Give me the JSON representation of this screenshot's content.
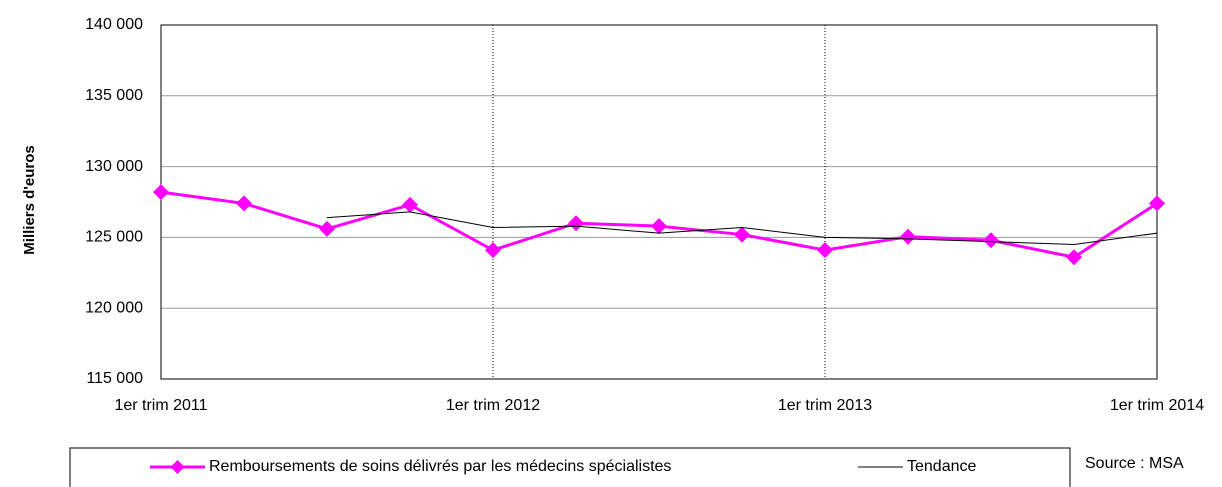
{
  "chart_data": {
    "type": "line",
    "ylabel": "Milliers d'euros",
    "source": "Source : MSA",
    "categories": [
      "1er trim 2011",
      null,
      null,
      null,
      "1er trim 2012",
      null,
      null,
      null,
      "1er trim 2013",
      null,
      null,
      null,
      "1er trim 2014"
    ],
    "series": [
      {
        "name": "Remboursements de soins délivrés par les médecins spécialistes",
        "color": "#ff00ff",
        "values": [
          128200,
          127400,
          125600,
          127300,
          124100,
          126000,
          125800,
          125200,
          124100,
          125050,
          124800,
          123600,
          127400
        ]
      },
      {
        "name": "Tendance",
        "color": "#000000",
        "values": [
          null,
          null,
          126400,
          126800,
          125700,
          125800,
          125300,
          125700,
          125000,
          124900,
          124700,
          124500,
          125300
        ]
      }
    ],
    "ylim": [
      115000,
      140000
    ],
    "yticks": [
      {
        "value": 115000,
        "label": "115 000"
      },
      {
        "value": 120000,
        "label": "120 000"
      },
      {
        "value": 125000,
        "label": "125 000"
      },
      {
        "value": 130000,
        "label": "130 000"
      },
      {
        "value": 135000,
        "label": "135 000"
      },
      {
        "value": 140000,
        "label": "140 000"
      }
    ],
    "grid": true
  }
}
